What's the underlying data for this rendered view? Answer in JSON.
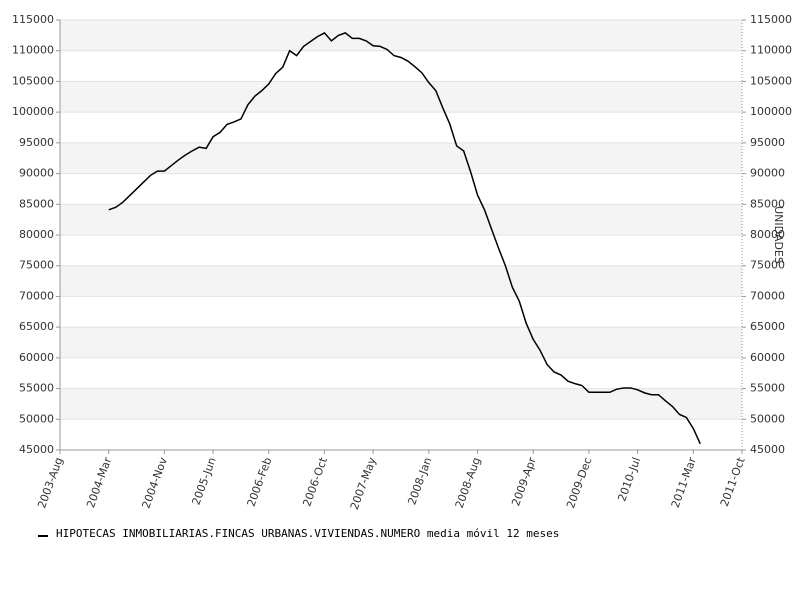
{
  "chart_data": {
    "type": "line",
    "y2label": "UNIDADES",
    "x": [
      "2004-Mar",
      "2004-Apr",
      "2004-May",
      "2004-Jun",
      "2004-Jul",
      "2004-Aug",
      "2004-Sep",
      "2004-Oct",
      "2004-Nov",
      "2004-Dec",
      "2005-Jan",
      "2005-Feb",
      "2005-Mar",
      "2005-Apr",
      "2005-May",
      "2005-Jun",
      "2005-Jul",
      "2005-Aug",
      "2005-Sep",
      "2005-Oct",
      "2005-Nov",
      "2005-Dec",
      "2006-Jan",
      "2006-Feb",
      "2006-Mar",
      "2006-Apr",
      "2006-May",
      "2006-Jun",
      "2006-Jul",
      "2006-Aug",
      "2006-Sep",
      "2006-Oct",
      "2006-Nov",
      "2006-Dec",
      "2007-Jan",
      "2007-Feb",
      "2007-Mar",
      "2007-Apr",
      "2007-May",
      "2007-Jun",
      "2007-Jul",
      "2007-Aug",
      "2007-Sep",
      "2007-Oct",
      "2007-Nov",
      "2007-Dec",
      "2008-Jan",
      "2008-Feb",
      "2008-Mar",
      "2008-Apr",
      "2008-May",
      "2008-Jun",
      "2008-Jul",
      "2008-Aug",
      "2008-Sep",
      "2008-Oct",
      "2008-Nov",
      "2008-Dec",
      "2009-Jan",
      "2009-Feb",
      "2009-Mar",
      "2009-Apr",
      "2009-May",
      "2009-Jun",
      "2009-Jul",
      "2009-Aug",
      "2009-Sep",
      "2009-Oct",
      "2009-Nov",
      "2009-Dec",
      "2010-Jan",
      "2010-Feb",
      "2010-Mar",
      "2010-Apr",
      "2010-May",
      "2010-Jun",
      "2010-Jul",
      "2010-Aug",
      "2010-Sep",
      "2010-Oct",
      "2010-Nov",
      "2010-Dec",
      "2011-Jan",
      "2011-Feb",
      "2011-Mar",
      "2011-Apr"
    ],
    "series": [
      {
        "name": "HIPOTECAS INMOBILIARIAS.FINCAS URBANAS.VIVIENDAS.NUMERO media móvil 12 meses",
        "color": "#000000",
        "values": [
          84100,
          84500,
          85300,
          86400,
          87500,
          88600,
          89700,
          90400,
          90400,
          91300,
          92200,
          93000,
          93700,
          94300,
          94100,
          96000,
          96700,
          98000,
          98400,
          98900,
          101200,
          102600,
          103500,
          104600,
          106300,
          107300,
          110000,
          109200,
          110700,
          111500,
          112300,
          112900,
          111600,
          112500,
          112900,
          112000,
          112000,
          111600,
          110800,
          110700,
          110200,
          109200,
          108900,
          108300,
          107400,
          106400,
          104800,
          103500,
          100700,
          98100,
          94500,
          93700,
          90300,
          86500,
          84100,
          81000,
          77900,
          75000,
          71500,
          69200,
          65600,
          63000,
          61200,
          58900,
          57700,
          57200,
          56200,
          55800,
          55500,
          54400,
          54400,
          54400,
          54400,
          54900,
          55100,
          55100,
          54800,
          54300,
          54000,
          54000,
          53000,
          52100,
          50800,
          50300,
          48500,
          46000
        ]
      }
    ],
    "xticks": [
      "2003-Aug",
      "2004-Mar",
      "2004-Nov",
      "2005-Jun",
      "2006-Feb",
      "2006-Oct",
      "2007-May",
      "2008-Jan",
      "2008-Aug",
      "2009-Apr",
      "2009-Dec",
      "2010-Jul",
      "2011-Mar",
      "2011-Oct"
    ],
    "ylim": [
      45000,
      115000
    ],
    "yticks": [
      45000,
      50000,
      55000,
      60000,
      65000,
      70000,
      75000,
      80000,
      85000,
      90000,
      95000,
      100000,
      105000,
      110000,
      115000
    ],
    "grid": true,
    "legend": "bottom"
  }
}
